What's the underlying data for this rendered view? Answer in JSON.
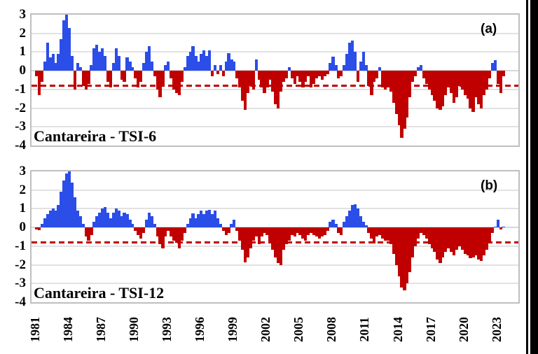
{
  "figure": {
    "background": "#ffffff",
    "right_edge_stripe_color": "#000000",
    "right_edge_inner_line_color": "#ffffff",
    "grid_color": "#e2e2e2",
    "plot_border_color": "#bfbfbf"
  },
  "chart_data": [
    {
      "type": "bar",
      "panel_label": "(a)",
      "title": "Cantareira - TSI-6",
      "x_start_year": 1981,
      "points_per_year": 4,
      "x_axis_range": [
        1981,
        2025
      ],
      "ylim": [
        -4,
        3
      ],
      "grid": true,
      "legend": "none",
      "y_ticks": [
        3,
        2,
        1,
        0,
        -1,
        -2,
        -3,
        -4
      ],
      "x_tick_years": [
        1981,
        1984,
        1987,
        1990,
        1993,
        1996,
        1999,
        2002,
        2005,
        2008,
        2011,
        2014,
        2017,
        2020,
        2023
      ],
      "threshold_line_y": -0.8,
      "threshold_line_style": "dashed",
      "threshold_line_color": "#c00000",
      "positive_color": "#2b4de8",
      "negative_color": "#c00000",
      "values": [
        -0.3,
        -1.3,
        -0.6,
        0.5,
        1.5,
        0.7,
        0.9,
        0.4,
        0.9,
        1.7,
        2.7,
        3.0,
        2.3,
        0.8,
        -1.0,
        0.4,
        0.2,
        -0.8,
        -1.0,
        -0.7,
        0.3,
        1.2,
        1.4,
        1.0,
        1.2,
        0.8,
        -0.6,
        -0.9,
        0.4,
        1.2,
        0.8,
        -0.5,
        -0.6,
        0.7,
        0.5,
        0.2,
        -0.4,
        -0.9,
        -0.6,
        0.4,
        1.0,
        1.3,
        0.5,
        -0.3,
        -1.0,
        -1.4,
        -0.8,
        0.3,
        0.5,
        -0.4,
        -1.0,
        -1.2,
        -1.3,
        -0.6,
        0.2,
        0.8,
        1.0,
        1.3,
        0.8,
        0.5,
        0.9,
        1.1,
        0.8,
        1.1,
        -0.3,
        0.3,
        -0.2,
        0.3,
        -0.3,
        0.5,
        0.95,
        0.6,
        0.5,
        -0.4,
        -0.9,
        -1.6,
        -2.1,
        -1.2,
        -0.8,
        -1.0,
        0.6,
        -0.5,
        -0.9,
        -1.2,
        -0.9,
        -0.5,
        -1.1,
        -1.8,
        -2.0,
        -1.1,
        -0.6,
        -0.4,
        0.2,
        -0.4,
        -0.7,
        -0.3,
        -0.6,
        -0.9,
        -0.6,
        -0.3,
        -0.9,
        -0.7,
        -0.4,
        -0.3,
        -0.5,
        -0.3,
        -0.2,
        0.4,
        0.75,
        0.3,
        -0.4,
        -0.3,
        0.3,
        0.9,
        1.5,
        1.6,
        1.0,
        -0.6,
        0.5,
        1.0,
        0.3,
        -0.8,
        -1.3,
        -0.6,
        -0.4,
        0.2,
        -0.9,
        -1.0,
        -0.9,
        -1.1,
        -1.7,
        -2.3,
        -2.9,
        -3.6,
        -3.1,
        -2.5,
        -1.4,
        -0.6,
        -0.3,
        0.2,
        0.3,
        -0.4,
        -0.7,
        -1.0,
        -1.3,
        -1.6,
        -2.0,
        -2.1,
        -1.9,
        -1.3,
        -0.9,
        -1.2,
        -1.7,
        -1.4,
        -0.8,
        -1.0,
        -1.3,
        -1.5,
        -2.0,
        -2.2,
        -1.4,
        -1.8,
        -2.0,
        -1.3,
        -1.0,
        -0.4,
        0.4,
        0.55,
        -0.7,
        -1.2,
        -0.3
      ]
    },
    {
      "type": "bar",
      "panel_label": "(b)",
      "title": "Cantareira - TSI-12",
      "x_start_year": 1981,
      "points_per_year": 4,
      "x_axis_range": [
        1981,
        2025
      ],
      "ylim": [
        -4,
        3
      ],
      "grid": true,
      "legend": "none",
      "y_ticks": [
        3,
        2,
        1,
        0,
        -1,
        -2,
        -3,
        -4
      ],
      "x_tick_years": [
        1981,
        1984,
        1987,
        1990,
        1993,
        1996,
        1999,
        2002,
        2005,
        2008,
        2011,
        2014,
        2017,
        2020,
        2023
      ],
      "threshold_line_y": -0.8,
      "threshold_line_style": "dashed",
      "threshold_line_color": "#c00000",
      "positive_color": "#2b4de8",
      "negative_color": "#c00000",
      "values": [
        -0.1,
        -0.15,
        0.2,
        0.5,
        0.7,
        0.9,
        1.0,
        0.9,
        1.2,
        1.9,
        2.5,
        2.9,
        3.0,
        2.4,
        1.6,
        0.9,
        0.6,
        0.2,
        -0.5,
        -0.7,
        -0.4,
        0.3,
        0.6,
        0.8,
        1.0,
        1.1,
        0.8,
        0.5,
        0.8,
        1.0,
        0.9,
        0.6,
        0.8,
        0.7,
        0.4,
        0.2,
        -0.2,
        -0.4,
        -0.6,
        -0.3,
        0.4,
        0.8,
        0.6,
        0.2,
        -0.5,
        -0.9,
        -1.1,
        -0.5,
        -0.2,
        -0.5,
        -0.7,
        -0.8,
        -1.1,
        -0.7,
        -0.3,
        0.2,
        0.5,
        0.75,
        0.5,
        0.7,
        0.9,
        0.7,
        0.9,
        0.95,
        0.7,
        0.9,
        0.5,
        0.2,
        -0.2,
        -0.4,
        -0.3,
        0.2,
        0.4,
        -0.2,
        -0.7,
        -1.2,
        -1.85,
        -1.6,
        -1.1,
        -0.7,
        -0.5,
        -0.9,
        -0.5,
        -0.3,
        -0.4,
        -0.8,
        -1.2,
        -1.6,
        -1.9,
        -2.0,
        -1.2,
        -0.9,
        -0.7,
        -0.4,
        -0.5,
        -0.3,
        -0.4,
        -0.6,
        -0.7,
        -0.4,
        -0.3,
        -0.4,
        -0.5,
        -0.6,
        -0.5,
        -0.4,
        -0.2,
        0.3,
        0.4,
        0.2,
        -0.3,
        -0.4,
        0.3,
        0.6,
        0.9,
        1.2,
        1.25,
        1.0,
        0.6,
        0.3,
        0.1,
        -0.3,
        -0.6,
        -0.85,
        -0.5,
        -0.4,
        -0.6,
        -0.7,
        -0.7,
        -0.9,
        -1.4,
        -2.0,
        -2.6,
        -3.2,
        -3.35,
        -3.0,
        -2.4,
        -1.6,
        -1.0,
        -0.6,
        -0.3,
        -0.4,
        -0.6,
        -0.9,
        -1.1,
        -1.3,
        -1.7,
        -1.9,
        -1.6,
        -1.3,
        -1.1,
        -1.3,
        -1.5,
        -1.2,
        -1.0,
        -1.2,
        -1.4,
        -1.5,
        -1.65,
        -1.6,
        -1.5,
        -1.7,
        -1.8,
        -1.5,
        -1.2,
        -0.8,
        -0.3,
        0.0,
        0.4,
        -0.1,
        0.0
      ]
    }
  ]
}
